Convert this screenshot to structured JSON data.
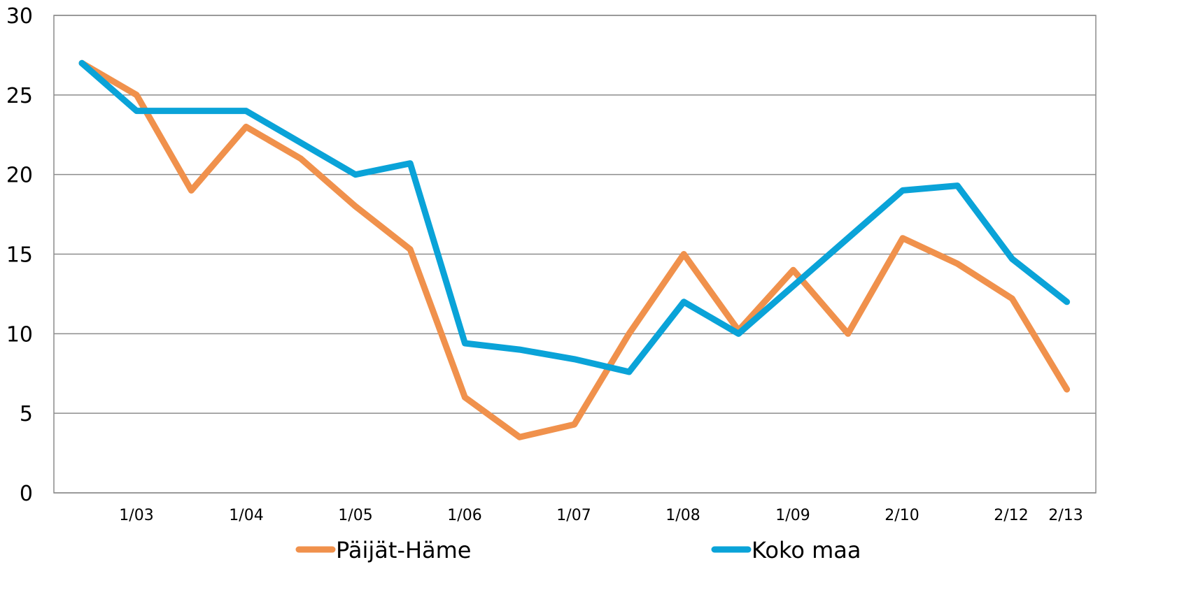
{
  "chart_data": {
    "type": "line",
    "x_labels_shown": [
      "1/03",
      "1/04",
      "1/05",
      "1/06",
      "1/07",
      "1/08",
      "1/09",
      "2/10",
      "2/12",
      "2/13"
    ],
    "point_count": 19,
    "ylim": [
      0,
      30
    ],
    "y_ticks": [
      0,
      5,
      10,
      15,
      20,
      25,
      30
    ],
    "grid": true,
    "legend_position": "bottom",
    "series": [
      {
        "name": "Päijät-Häme",
        "color": "#f0914c",
        "values": [
          27,
          25,
          19,
          23,
          21,
          18,
          15.3,
          6,
          3.5,
          4.3,
          10,
          15,
          10.2,
          14,
          10,
          16,
          14.4,
          12.2,
          6.5
        ]
      },
      {
        "name": "Koko maa",
        "color": "#0aa3d8",
        "values": [
          27,
          24,
          24,
          24,
          22,
          20,
          20.7,
          9.4,
          9.0,
          8.4,
          7.6,
          12,
          10,
          13,
          16,
          19,
          19.3,
          14.7,
          12
        ]
      }
    ]
  }
}
